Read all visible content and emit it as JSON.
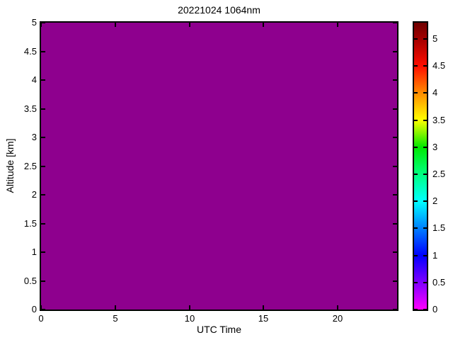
{
  "figure": {
    "background_color": "#FFFFFF",
    "axis_color": "#000000",
    "text_color": "#000000"
  },
  "chart_data": {
    "type": "heatmap",
    "title": "20221024 1064nm",
    "xlabel": "UTC Time",
    "ylabel": "Altitude [km]",
    "xlim": [
      0,
      24
    ],
    "ylim": [
      0,
      5
    ],
    "grid": false,
    "x_ticks": {
      "values": [
        0,
        5,
        10,
        15,
        20
      ],
      "labels": [
        "0",
        "5",
        "10",
        "15",
        "20"
      ]
    },
    "y_ticks": {
      "values": [
        0,
        0.5,
        1,
        1.5,
        2,
        2.5,
        3,
        3.5,
        4,
        4.5,
        5
      ],
      "labels": [
        "0",
        "0.5",
        "1",
        "1.5",
        "2",
        "2.5",
        "3",
        "3.5",
        "4",
        "4.5",
        "5"
      ]
    },
    "values": {
      "uniform_value": 0
    },
    "plot_fill_color": "#8E008E",
    "colorbar": {
      "min": 0,
      "max": 5.3,
      "ticks": {
        "values": [
          0,
          0.5,
          1,
          1.5,
          2,
          2.5,
          3,
          3.5,
          4,
          4.5,
          5
        ],
        "labels": [
          "0",
          "0.5",
          "1",
          "1.5",
          "2",
          "2.5",
          "3",
          "3.5",
          "4",
          "4.5",
          "5"
        ]
      },
      "gradient": [
        {
          "value": 0.0,
          "color": "#FF00FF"
        },
        {
          "value": 1.0,
          "color": "#0000FF"
        },
        {
          "value": 2.0,
          "color": "#00FFFF"
        },
        {
          "value": 2.5,
          "color": "#00FF80"
        },
        {
          "value": 3.0,
          "color": "#00E800"
        },
        {
          "value": 3.5,
          "color": "#FFFF00"
        },
        {
          "value": 4.0,
          "color": "#FF8C00"
        },
        {
          "value": 4.5,
          "color": "#FF0D00"
        },
        {
          "value": 5.0,
          "color": "#A30000"
        },
        {
          "value": 5.3,
          "color": "#6E0000"
        }
      ]
    }
  }
}
